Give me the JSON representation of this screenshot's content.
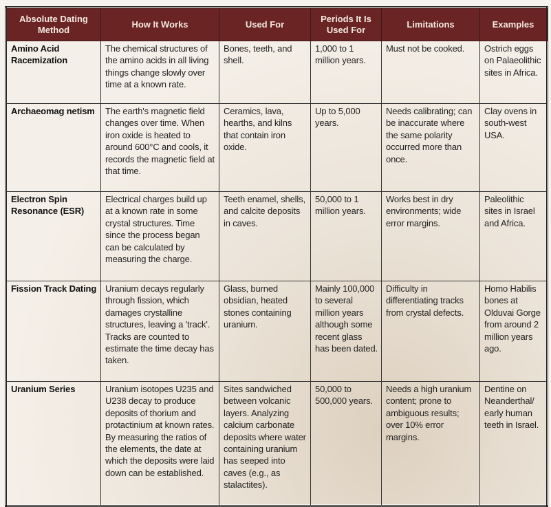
{
  "headers": [
    "Absolute Dating Method",
    "How It Works",
    "Used For",
    "Periods It Is Used For",
    "Limitations",
    "Examples"
  ],
  "rows": [
    [
      "Amino Acid Racemization",
      "The chemical structures of the amino acids in all living things change slowly over time at a known rate.",
      "Bones, teeth, and shell.",
      "1,000 to 1 million years.",
      "Must not be cooked.",
      "Ostrich eggs on Palaeolithic sites in Africa."
    ],
    [
      "Archaeomag netism",
      "The earth's magnetic field changes over time. When iron oxide is heated to around 600°C and cools, it records the magnetic field at that time.",
      "Ceramics, lava, hearths, and kilns that contain iron oxide.",
      "Up to 5,000 years.",
      "Needs calibrating; can be inaccurate where the same polarity occurred more than once.",
      "Clay ovens in south-west USA."
    ],
    [
      "Electron Spin Resonance (ESR)",
      "Electrical charges build up at a known rate in some crystal structures. Time since the process began can be calculated by measuring the charge.",
      "Teeth enamel, shells, and calcite deposits in caves.",
      "50,000 to 1 million years.",
      "Works best in dry environments; wide error margins.",
      "Paleolithic sites in Israel and Africa."
    ],
    [
      "Fission Track Dating",
      "Uranium decays regularly through fission, which damages crystalline structures, leaving a 'track'. Tracks are counted to estimate the time decay has taken.",
      "Glass, burned obsidian, heated stones containing uranium.",
      "Mainly 100,000 to several million years although some recent glass has been dated.",
      "Difficulty in differentiating tracks from crystal defects.",
      "Homo Habilis bones at Olduvai Gorge from around 2 million years ago."
    ],
    [
      "Uranium Series",
      "Uranium isotopes U235 and U238 decay to produce deposits of thorium and protactinium at known rates. By measuring the ratios of the elements, the date at which the deposits were laid down can be established.",
      "Sites sandwiched between volcanic layers. Analyzing calcium carbonate deposits where water containing uranium has seeped into caves (e.g., as stalactites).",
      "50,000 to 500,000 years.",
      "Needs a high uranium content; prone to ambiguous results; over 10% error margins.",
      "Dentine on Neanderthal/ early human teeth in Israel."
    ]
  ],
  "colors": {
    "header_bg": "#6b2424",
    "header_text": "#f3e8e0"
  }
}
